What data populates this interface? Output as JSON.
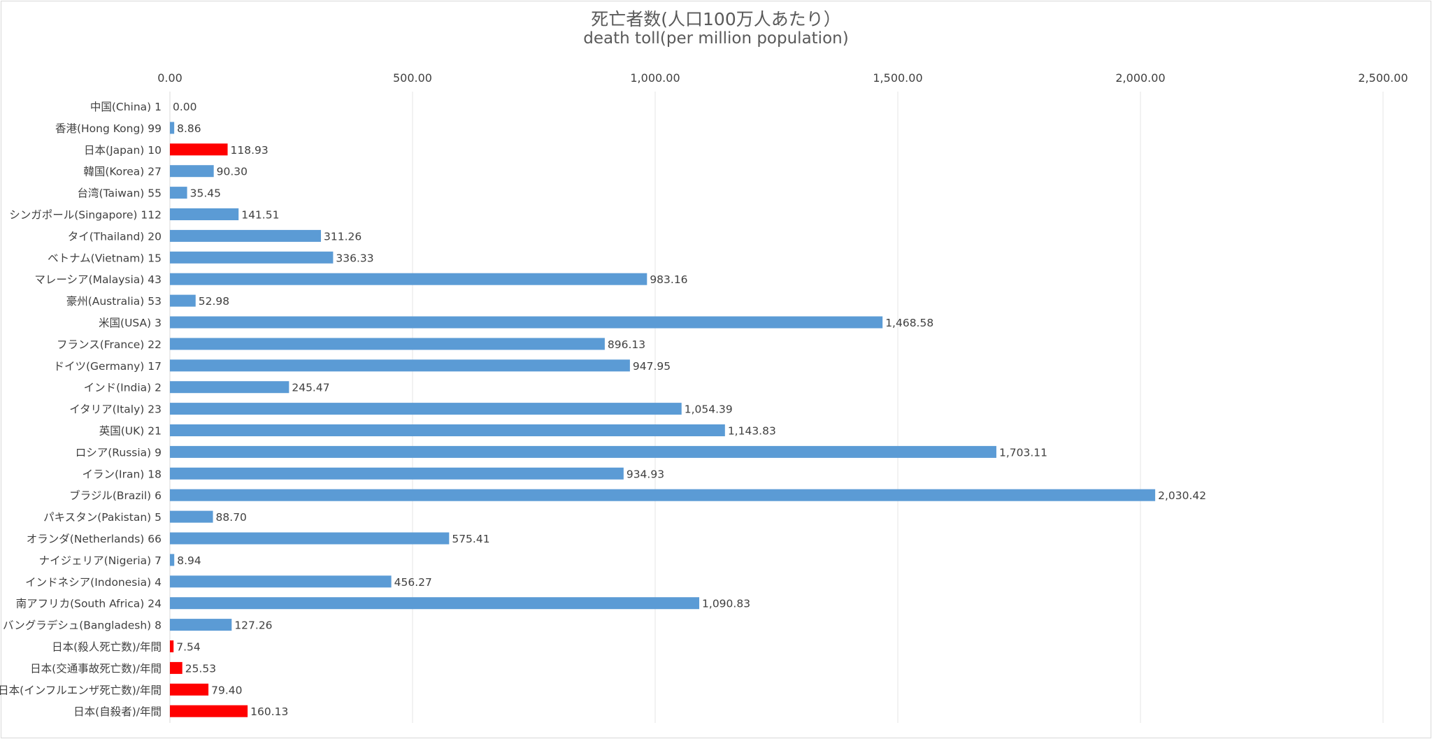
{
  "chart_data": {
    "type": "bar",
    "orientation": "horizontal",
    "title": "死亡者数(人口100万人あたり）",
    "subtitle": "death toll(per million population)",
    "xlim": [
      0,
      2500
    ],
    "xticks": [
      "0.00",
      "500.00",
      "1,000.00",
      "1,500.00",
      "2,000.00",
      "2,500.00"
    ],
    "xtick_values": [
      0,
      500,
      1000,
      1500,
      2000,
      2500
    ],
    "x_axis_position": "top",
    "grid": true,
    "colors": {
      "default": "#5b9bd5",
      "highlight": "#ff0000"
    },
    "categories": [
      "中国(China) 1",
      "香港(Hong Kong) 99",
      "日本(Japan) 10",
      "韓国(Korea) 27",
      "台湾(Taiwan) 55",
      "シンガポール(Singapore) 112",
      "タイ(Thailand) 20",
      "ベトナム(Vietnam) 15",
      "マレーシア(Malaysia) 43",
      "豪州(Australia) 53",
      "米国(USA) 3",
      "フランス(France) 22",
      "ドイツ(Germany) 17",
      "インド(India) 2",
      "イタリア(Italy) 23",
      "英国(UK) 21",
      "ロシア(Russia) 9",
      "イラン(Iran) 18",
      "ブラジル(Brazil) 6",
      "パキスタン(Pakistan) 5",
      "オランダ(Netherlands) 66",
      "ナイジェリア(Nigeria) 7",
      "インドネシア(Indonesia) 4",
      "南アフリカ(South Africa) 24",
      "バングラデシュ(Bangladesh) 8",
      "日本(殺人死亡数)/年間",
      "日本(交通事故死亡数)/年間",
      "日本(インフルエンザ死亡数)/年間",
      "日本(自殺者)/年間"
    ],
    "values": [
      0.0,
      8.86,
      118.93,
      90.3,
      35.45,
      141.51,
      311.26,
      336.33,
      983.16,
      52.98,
      1468.58,
      896.13,
      947.95,
      245.47,
      1054.39,
      1143.83,
      1703.11,
      934.93,
      2030.42,
      88.7,
      575.41,
      8.94,
      456.27,
      1090.83,
      127.26,
      7.54,
      25.53,
      79.4,
      160.13
    ],
    "data_labels": [
      "0.00",
      "8.86",
      "118.93",
      "90.30",
      "35.45",
      "141.51",
      "311.26",
      "336.33",
      "983.16",
      "52.98",
      "1,468.58",
      "896.13",
      "947.95",
      "245.47",
      "1,054.39",
      "1,143.83",
      "1,703.11",
      "934.93",
      "2,030.42",
      "88.70",
      "575.41",
      "8.94",
      "456.27",
      "1,090.83",
      "127.26",
      "7.54",
      "25.53",
      "79.40",
      "160.13"
    ],
    "highlighted": [
      2,
      25,
      26,
      27,
      28
    ]
  }
}
